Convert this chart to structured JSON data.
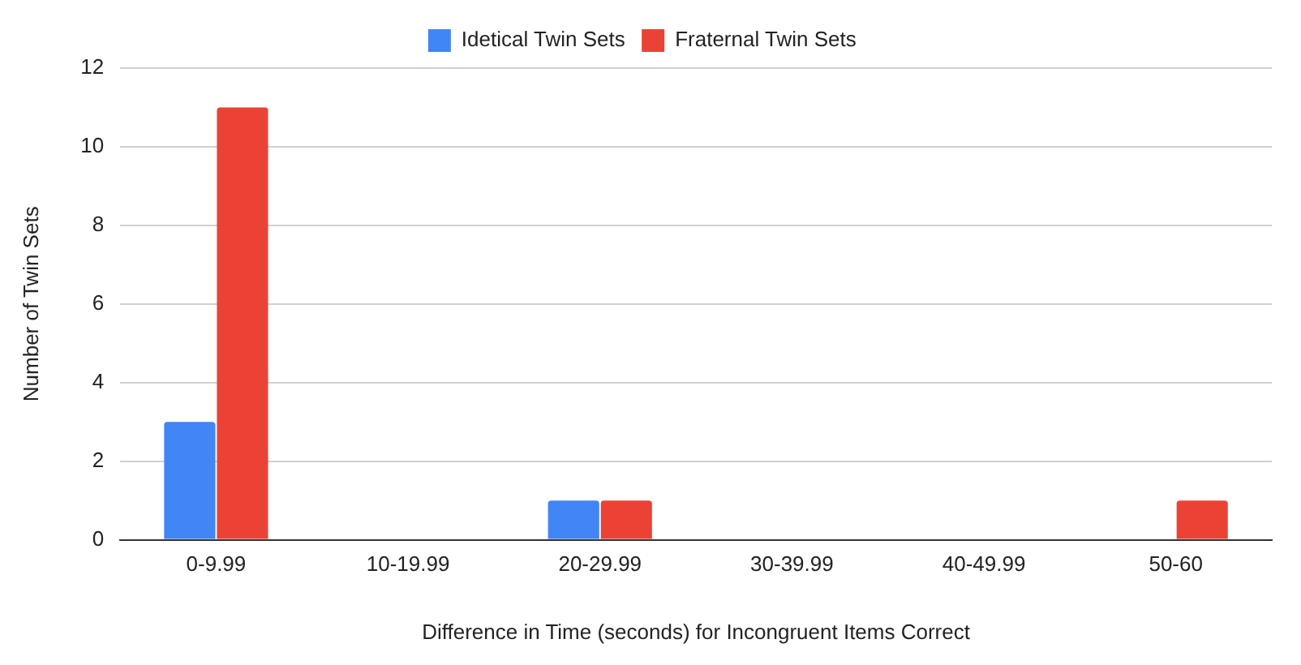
{
  "chart_data": {
    "type": "bar",
    "xlabel": "Difference in Time (seconds) for Incongruent Items Correct",
    "ylabel": "Number of Twin Sets",
    "categories": [
      "0-9.99",
      "10-19.99",
      "20-29.99",
      "30-39.99",
      "40-49.99",
      "50-60"
    ],
    "series": [
      {
        "name": "Idetical Twin Sets",
        "color": "#4285f4",
        "values": [
          3,
          0,
          1,
          0,
          0,
          0
        ]
      },
      {
        "name": "Fraternal Twin Sets",
        "color": "#ea4335",
        "values": [
          11,
          0,
          1,
          0,
          0,
          1
        ]
      }
    ],
    "ylim": [
      0,
      12
    ],
    "yticks": [
      0,
      2,
      4,
      6,
      8,
      10,
      12
    ],
    "grid": "y",
    "legend": "top"
  }
}
